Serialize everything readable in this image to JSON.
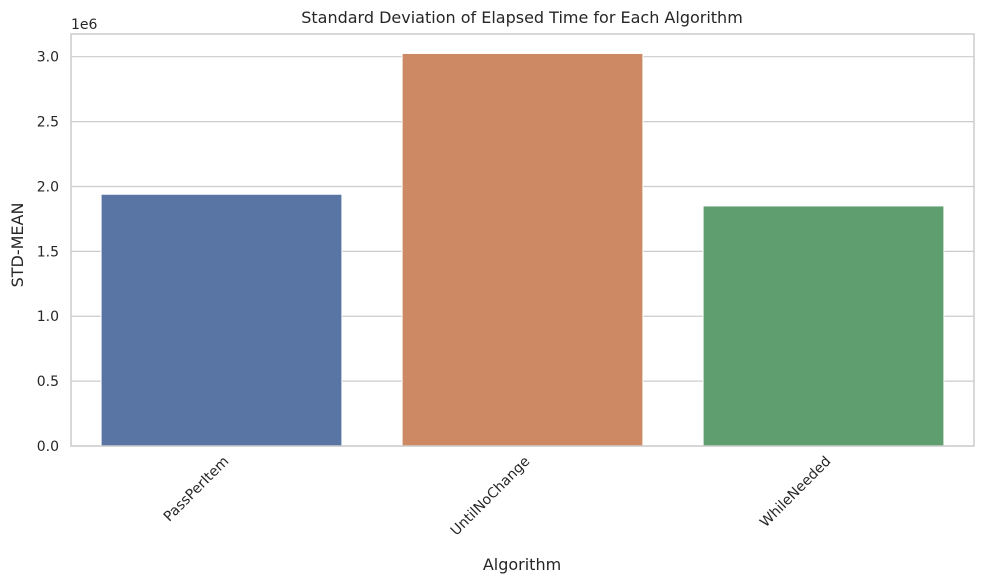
{
  "chart_data": {
    "type": "bar",
    "title": "Standard Deviation of Elapsed Time for Each Algorithm",
    "xlabel": "Algorithm",
    "ylabel": "STD-MEAN",
    "y_offset_label": "1e6",
    "categories": [
      "PassPerItem",
      "UntilNoChange",
      "WhileNeeded"
    ],
    "values": [
      1940000,
      3025000,
      1850000
    ],
    "colors": [
      "#5975a4",
      "#cc8963",
      "#5f9e6e"
    ],
    "ylim": [
      0,
      3175000
    ],
    "yticks": [
      0,
      500000,
      1000000,
      1500000,
      2000000,
      2500000,
      3000000
    ],
    "ytick_labels": [
      "0.0",
      "0.5",
      "1.0",
      "1.5",
      "2.0",
      "2.5",
      "3.0"
    ],
    "grid": true,
    "legend": "none"
  }
}
